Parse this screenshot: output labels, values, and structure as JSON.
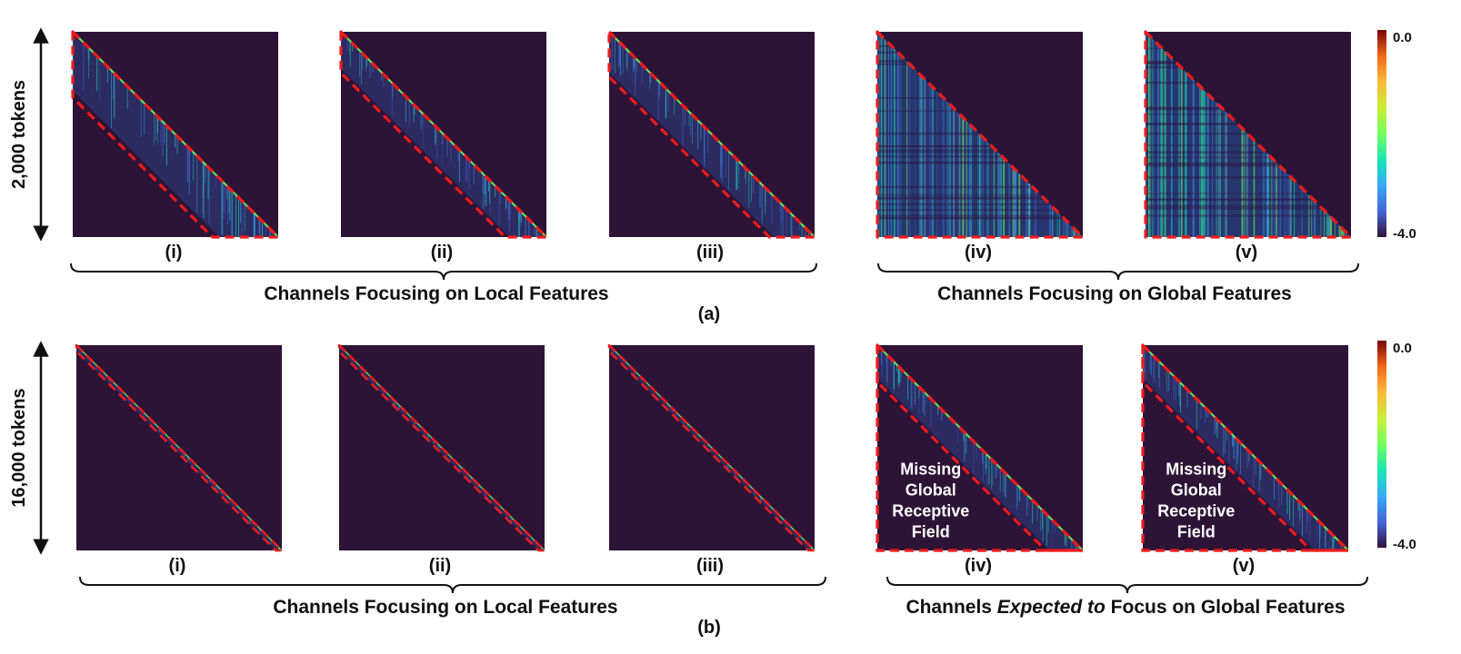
{
  "rows": [
    {
      "axis_label": "2,000 tokens",
      "panels": [
        {
          "label": "(i)",
          "type": "local",
          "width": 0.32,
          "note": ""
        },
        {
          "label": "(ii)",
          "type": "local",
          "width": 0.2,
          "note": ""
        },
        {
          "label": "(iii)",
          "type": "local",
          "width": 0.22,
          "note": ""
        },
        {
          "label": "(iv)",
          "type": "global",
          "width": 1.0,
          "note": ""
        },
        {
          "label": "(v)",
          "type": "global",
          "width": 1.0,
          "note": ""
        }
      ],
      "left_group_caption": "Channels Focusing on Local Features",
      "right_group_caption_pre": "Channels Focusing on Global Features",
      "right_group_caption_italic": "",
      "right_group_caption_post": "",
      "subfigure_label": "(a)",
      "colorbar": {
        "max_label": "0.0",
        "min_label": "-4.0"
      }
    },
    {
      "axis_label": "16,000 tokens",
      "panels": [
        {
          "label": "(i)",
          "type": "diagonal",
          "width": 0.03,
          "note": ""
        },
        {
          "label": "(ii)",
          "type": "diagonal",
          "width": 0.03,
          "note": ""
        },
        {
          "label": "(iii)",
          "type": "diagonal",
          "width": 0.03,
          "note": ""
        },
        {
          "label": "(iv)",
          "type": "expected",
          "width": 0.18,
          "note": "Missing\nGlobal\nReceptive\nField"
        },
        {
          "label": "(v)",
          "type": "expected",
          "width": 0.18,
          "note": "Missing\nGlobal\nReceptive\nField"
        }
      ],
      "left_group_caption": "Channels Focusing on Local Features",
      "right_group_caption_pre": "Channels ",
      "right_group_caption_italic": "Expected to",
      "right_group_caption_post": " Focus on Global Features",
      "subfigure_label": "(b)",
      "colorbar": {
        "max_label": "0.0",
        "min_label": "-4.0"
      }
    }
  ],
  "colors": {
    "background_panel": "#2d1436",
    "dashed_outline": "#ee1c1c",
    "colormap": [
      "#30123b",
      "#4662d7",
      "#36aaf9",
      "#1ae4b6",
      "#72fe5e",
      "#c8ef34",
      "#faba39",
      "#f66b19",
      "#ca2a04",
      "#7a0403"
    ]
  }
}
